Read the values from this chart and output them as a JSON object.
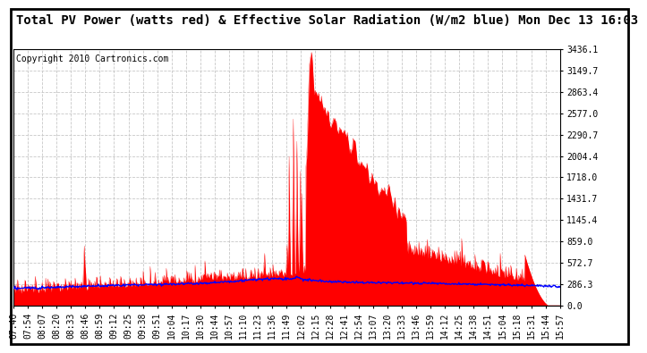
{
  "title": "Total PV Power (watts red) & Effective Solar Radiation (W/m2 blue) Mon Dec 13 16:03",
  "copyright": "Copyright 2010 Cartronics.com",
  "yticks": [
    0.0,
    286.3,
    572.7,
    859.0,
    1145.4,
    1431.7,
    1718.0,
    2004.4,
    2290.7,
    2577.0,
    2863.4,
    3149.7,
    3436.1
  ],
  "ymax": 3436.1,
  "bg_color": "#ffffff",
  "grid_color": "#c8c8c8",
  "red_color": "#ff0000",
  "blue_color": "#0000ff",
  "title_fontsize": 10,
  "copyright_fontsize": 7,
  "tick_fontsize": 7,
  "xtick_labels": [
    "07:40",
    "07:54",
    "08:07",
    "08:20",
    "08:33",
    "08:46",
    "08:59",
    "09:12",
    "09:25",
    "09:38",
    "09:51",
    "10:04",
    "10:17",
    "10:30",
    "10:44",
    "10:57",
    "11:10",
    "11:23",
    "11:36",
    "11:49",
    "12:02",
    "12:15",
    "12:28",
    "12:41",
    "12:54",
    "13:07",
    "13:20",
    "13:33",
    "13:46",
    "13:59",
    "14:12",
    "14:25",
    "14:38",
    "14:51",
    "15:04",
    "15:18",
    "15:31",
    "15:44",
    "15:57"
  ],
  "n_points": 780
}
